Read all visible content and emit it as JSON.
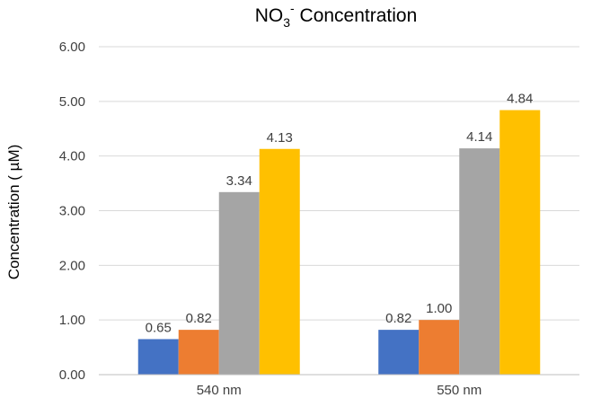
{
  "chart_data": {
    "type": "bar",
    "title": {
      "main": "NO",
      "sub": "3",
      "sup": "-",
      "rest": " Concentration"
    },
    "ylabel": "Concentration ( µM)",
    "xlabel": "",
    "categories": [
      "540 nm",
      "550 nm"
    ],
    "ylim": [
      0,
      6
    ],
    "yticks": [
      "0.00",
      "1.00",
      "2.00",
      "3.00",
      "4.00",
      "5.00",
      "6.00"
    ],
    "grid": true,
    "legend": "none",
    "series": [
      {
        "values": [
          0.65,
          0.82
        ],
        "labels": [
          "0.65",
          "0.82"
        ],
        "color": "#4472C4"
      },
      {
        "values": [
          0.82,
          1.0
        ],
        "labels": [
          "0.82",
          "1.00"
        ],
        "color": "#ED7D31"
      },
      {
        "values": [
          3.34,
          4.14
        ],
        "labels": [
          "3.34",
          "4.14"
        ],
        "color": "#A5A5A5"
      },
      {
        "values": [
          4.13,
          4.84
        ],
        "labels": [
          "4.13",
          "4.84"
        ],
        "color": "#FFC000"
      }
    ]
  }
}
